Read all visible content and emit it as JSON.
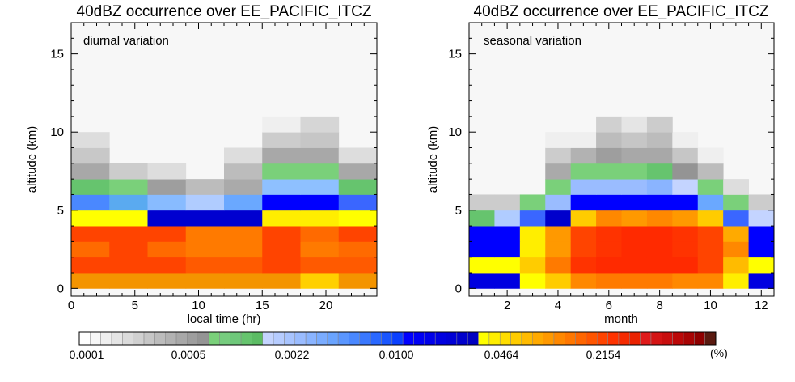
{
  "colorbar": {
    "colors": [
      "#ffffff",
      "#f7f7f7",
      "#efefef",
      "#e5e5e5",
      "#dbdbdb",
      "#d0d0d0",
      "#c6c6c6",
      "#bcbcbc",
      "#b2b2b2",
      "#a8a8a8",
      "#9e9e9e",
      "#949494",
      "#7ad07a",
      "#76cc7e",
      "#6ec87a",
      "#66c46e",
      "#5cbc64",
      "#c4d4ff",
      "#b6ccff",
      "#a8c4ff",
      "#9abcff",
      "#8ab4ff",
      "#7aacff",
      "#6aa4ff",
      "#5a96ff",
      "#4a88ff",
      "#3a78ff",
      "#2a68ff",
      "#1a56ff",
      "#0a40ff",
      "#0000ff",
      "#0000f4",
      "#0000ea",
      "#0000e0",
      "#0000d6",
      "#0000cc",
      "#0000c0",
      "#ffff00",
      "#ffee00",
      "#ffdd00",
      "#ffcc00",
      "#ffbb00",
      "#ffaa00",
      "#ff9900",
      "#ff8800",
      "#ff7700",
      "#ff6600",
      "#ff5500",
      "#ff4400",
      "#ff3300",
      "#f52a00",
      "#ea2200",
      "#e01a1a",
      "#d41414",
      "#c80e0e",
      "#bb0808",
      "#a80404",
      "#8f0000",
      "#5a1a10"
    ],
    "tick_labels": [
      "0.0001",
      "0.0005",
      "0.0022",
      "0.0100",
      "0.0464",
      "0.2154"
    ],
    "unit": "(%)"
  },
  "panels": [
    {
      "title": "40dBZ occurrence over EE_PACIFIC_ITCZ",
      "annotation": "diurnal variation",
      "xlabel": "local time (hr)",
      "ylabel": "altitude (km)",
      "x_ticks": [
        "0",
        "5",
        "10",
        "15",
        "20"
      ],
      "y_ticks": [
        "0",
        "5",
        "10",
        "15"
      ]
    },
    {
      "title": "40dBZ occurrence over EE_PACIFIC_ITCZ",
      "annotation": "seasonal variation",
      "xlabel": "month",
      "ylabel": "altitude (km)",
      "x_ticks": [
        "2",
        "4",
        "6",
        "8",
        "10",
        "12"
      ],
      "y_ticks": [
        "0",
        "5",
        "10",
        "15"
      ]
    }
  ],
  "chart_data": [
    {
      "type": "heatmap",
      "title": "40dBZ occurrence over EE_PACIFIC_ITCZ",
      "subtitle": "diurnal variation",
      "xlabel": "local time (hr)",
      "ylabel": "altitude (km)",
      "xlim": [
        0,
        24
      ],
      "ylim": [
        -0.5,
        17
      ],
      "x_edges": [
        0,
        3,
        6,
        9,
        12,
        15,
        18,
        21,
        24
      ],
      "altitude_km_bottom_of_rows": [
        0,
        1,
        2,
        3,
        4,
        5,
        6,
        7,
        8,
        9,
        10,
        11
      ],
      "row_height_km": 1,
      "cells": [
        [
          "#f49400",
          "#f49400",
          "#f49400",
          "#f49400",
          "#f49400",
          "#f49400",
          "#ffd000",
          "#f49400"
        ],
        [
          "#ff4400",
          "#ff4400",
          "#ff4400",
          "#ff5a00",
          "#ff5a00",
          "#ff4400",
          "#ff5a00",
          "#ff5a00"
        ],
        [
          "#ff6a00",
          "#ff4400",
          "#ff6a00",
          "#ff7a00",
          "#ff7a00",
          "#ff4400",
          "#ff7a00",
          "#ff6a00"
        ],
        [
          "#ff4400",
          "#ff4400",
          "#ff4400",
          "#ff7a00",
          "#ff7a00",
          "#ff4400",
          "#ff6a00",
          "#ff4400"
        ],
        [
          "#ffff00",
          "#ffff00",
          "#0000d0",
          "#0000d0",
          "#0000d0",
          "#ffee00",
          "#ffee00",
          "#ffff00"
        ],
        [
          "#4a88ff",
          "#5aaaf0",
          "#88bbff",
          "#b0ccff",
          "#6aa8ff",
          "#0000ff",
          "#0000ff",
          "#3a66ff"
        ],
        [
          "#66c46e",
          "#7ad07a",
          "#9e9e9e",
          "#bcbcbc",
          "#aaaaaa",
          "#8ec0ff",
          "#8ec0ff",
          "#66c46e"
        ],
        [
          "#a8a8a8",
          "#cccccc",
          "#dddddd",
          null,
          "#bcbcbc",
          "#7ad07a",
          "#7ad07a",
          "#a8a8a8"
        ],
        [
          "#c8c8c8",
          null,
          null,
          null,
          "#dddddd",
          "#a8a8a8",
          "#a8a8a8",
          "#dddddd"
        ],
        [
          "#dddddd",
          null,
          null,
          null,
          null,
          "#cccccc",
          "#c6c6c6",
          null
        ],
        [
          null,
          null,
          null,
          null,
          null,
          "#efefef",
          "#d6d6d6",
          null
        ],
        [
          null,
          null,
          null,
          null,
          null,
          null,
          null,
          null
        ]
      ]
    },
    {
      "type": "heatmap",
      "title": "40dBZ occurrence over EE_PACIFIC_ITCZ",
      "subtitle": "seasonal variation",
      "xlabel": "month",
      "ylabel": "altitude (km)",
      "xlim": [
        0.5,
        12.5
      ],
      "ylim": [
        -0.5,
        17
      ],
      "months": [
        1,
        2,
        3,
        4,
        5,
        6,
        7,
        8,
        9,
        10,
        11,
        12
      ],
      "altitude_km_bottom_of_rows": [
        0,
        1,
        2,
        3,
        4,
        5,
        6,
        7,
        8,
        9,
        10,
        11
      ],
      "row_height_km": 1,
      "cells": [
        [
          "#0000e0",
          "#0000e0",
          "#ffff00",
          "#ffcc00",
          "#ff8800",
          "#ff7a00",
          "#ff7a00",
          "#ff7a00",
          "#ff8800",
          "#ff8800",
          "#ffee00",
          "#0000e0"
        ],
        [
          "#ffff00",
          "#ffff00",
          "#ffcc00",
          "#ff7a00",
          "#ff3300",
          "#ff2a00",
          "#ff2a00",
          "#ff2a00",
          "#ff2a00",
          "#ff4400",
          "#ffbb00",
          "#ffff00"
        ],
        [
          "#0000ff",
          "#0000ff",
          "#ffee00",
          "#ff9900",
          "#ff4400",
          "#ff3300",
          "#ff2a00",
          "#ff2a00",
          "#ff3300",
          "#ff4400",
          "#ff8800",
          "#0000ff"
        ],
        [
          "#0000ff",
          "#0000ff",
          "#ffee00",
          "#ff9900",
          "#ff4400",
          "#ff3300",
          "#ff2a00",
          "#ff2a00",
          "#ff3300",
          "#ff4400",
          "#ffaa00",
          "#0000ff"
        ],
        [
          "#66c46e",
          "#b0ccff",
          "#3a66ff",
          "#0000cc",
          "#ffcc00",
          "#ff8800",
          "#ff9900",
          "#ff8800",
          "#ff9900",
          "#ffcc00",
          "#3a66ff",
          "#c4d4ff"
        ],
        [
          "#cccccc",
          "#cccccc",
          "#7ad07a",
          "#9abcff",
          "#0000ff",
          "#0000ff",
          "#0000ff",
          "#0000ff",
          "#0000ff",
          "#6aa8ff",
          "#7ad07a",
          "#cccccc"
        ],
        [
          null,
          null,
          null,
          "#7ad07a",
          "#9abcff",
          "#9abcff",
          "#9abcff",
          "#8ab4ff",
          "#c4d4ff",
          "#7ad07a",
          "#dddddd",
          null
        ],
        [
          null,
          null,
          null,
          "#aaaaaa",
          "#7ad07a",
          "#7ad07a",
          "#7ad07a",
          "#66c46e",
          "#949494",
          "#bcbcbc",
          null,
          null
        ],
        [
          null,
          null,
          null,
          "#cccccc",
          "#b2b2b2",
          "#9e9e9e",
          "#a8a8a8",
          "#a8a8a8",
          "#c6c6c6",
          "#efefef",
          null,
          null
        ],
        [
          null,
          null,
          null,
          "#efefef",
          "#efefef",
          "#bcbcbc",
          "#c6c6c6",
          "#bcbcbc",
          "#efefef",
          null,
          null,
          null
        ],
        [
          null,
          null,
          null,
          null,
          null,
          "#d0d0d0",
          "#e5e5e5",
          "#cccccc",
          null,
          null,
          null,
          null
        ],
        [
          null,
          null,
          null,
          null,
          null,
          null,
          null,
          null,
          null,
          null,
          null,
          null
        ]
      ]
    }
  ]
}
